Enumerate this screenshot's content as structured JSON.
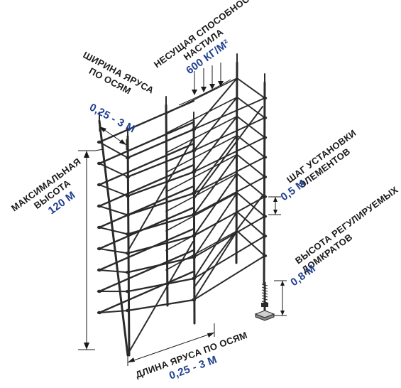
{
  "annotations": {
    "load": {
      "line1": "НЕСУЩАЯ СПОСОБНОСТЬ",
      "line2": "НАСТИЛА",
      "value": "600 КГ/М²"
    },
    "tier_width": {
      "line1": "ШИРИНА ЯРУСА",
      "line2": "ПО ОСЯМ",
      "value": "0,25 - 3 М"
    },
    "max_height": {
      "line1": "МАКСИМАЛЬНАЯ",
      "line2": "ВЫСОТА",
      "value": "120 М"
    },
    "element_step": {
      "line1": "ШАГ УСТАНОВКИ",
      "line2": "ЭЛЕМЕНТОВ",
      "value": "0,5 М"
    },
    "jack_height": {
      "line1": "ВЫСОТА РЕГУЛИРУЕМЫХ",
      "line2": "ДОМКРАТОВ",
      "value": "0,8 М"
    },
    "tier_length": {
      "line1": "ДЛИНА ЯРУСА ПО ОСЯМ",
      "value": "0,25 - 3 М"
    }
  },
  "colors": {
    "ink": "#1a1a1a",
    "accent": "#1f3f8f",
    "pipe": "#2b2b2b",
    "background": "#ffffff"
  }
}
